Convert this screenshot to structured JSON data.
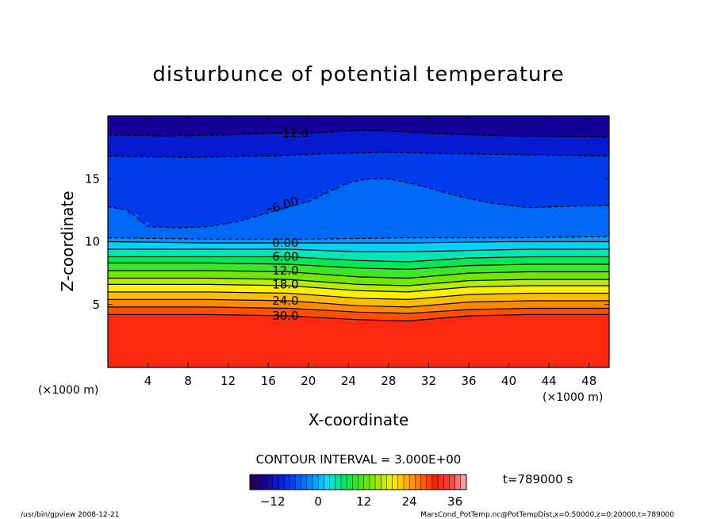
{
  "chart_data": {
    "type": "heatmap",
    "title": "disturbunce of potential temperature",
    "xlabel": "X-coordinate",
    "ylabel": "Z-coordinate",
    "x_unit_left": "(×1000 m)",
    "x_unit_right": "(×1000 m)",
    "xlim": [
      0,
      50
    ],
    "ylim": [
      0,
      20
    ],
    "x_ticks": [
      4,
      8,
      12,
      16,
      20,
      24,
      28,
      32,
      36,
      40,
      44,
      48
    ],
    "x_tick_labels": [
      "4",
      "8",
      "12",
      "16",
      "20",
      "24",
      "28",
      "32",
      "36",
      "40",
      "44",
      "48"
    ],
    "y_ticks": [
      5,
      10,
      15
    ],
    "y_tick_labels": [
      "5",
      "10",
      "15"
    ],
    "colormap_range": [
      -18,
      39
    ],
    "contour_interval_label": "CONTOUR INTERVAL = 3.000E+00",
    "time_label": "t=789000 s",
    "colorbar": {
      "ticks": [
        -12,
        0,
        12,
        24,
        36
      ],
      "tick_labels": [
        "−12",
        "0",
        "12",
        "24",
        "36"
      ]
    },
    "contour_labels": [
      {
        "text": "12.0",
        "x": 18.5,
        "z": 18.6,
        "negative": true
      },
      {
        "text": "6.00",
        "x": 17.5,
        "z": 12.9,
        "negative": true,
        "rotate": -18
      },
      {
        "text": "0.00",
        "x": 17.5,
        "z": 9.9,
        "negative": false
      },
      {
        "text": "6.00",
        "x": 17.5,
        "z": 8.8,
        "negative": false
      },
      {
        "text": "12.0",
        "x": 17.5,
        "z": 7.7,
        "negative": false
      },
      {
        "text": "18.0",
        "x": 17.5,
        "z": 6.6,
        "negative": false
      },
      {
        "text": "24.0",
        "x": 17.5,
        "z": 5.3,
        "negative": false
      },
      {
        "text": "30.0",
        "x": 17.5,
        "z": 4.1,
        "negative": false
      }
    ],
    "contours": [
      {
        "value": -12,
        "dash": true,
        "points": [
          [
            0,
            18.5
          ],
          [
            6,
            18.4
          ],
          [
            12,
            18.5
          ],
          [
            16,
            18.6
          ],
          [
            20,
            18.6
          ],
          [
            24,
            18.8
          ],
          [
            28,
            18.8
          ],
          [
            32,
            18.6
          ],
          [
            40,
            18.4
          ],
          [
            50,
            18.3
          ]
        ]
      },
      {
        "value": -9,
        "dash": true,
        "points": [
          [
            0,
            16.8
          ],
          [
            8,
            16.7
          ],
          [
            16,
            16.8
          ],
          [
            22,
            17.0
          ],
          [
            28,
            17.1
          ],
          [
            34,
            17.0
          ],
          [
            42,
            16.9
          ],
          [
            50,
            16.8
          ]
        ]
      },
      {
        "value": -6,
        "dash": true,
        "points": [
          [
            0,
            12.8
          ],
          [
            2,
            12.5
          ],
          [
            4,
            11.2
          ],
          [
            7,
            11.1
          ],
          [
            10,
            11.2
          ],
          [
            13,
            11.6
          ],
          [
            16,
            12.3
          ],
          [
            20,
            13.2
          ],
          [
            24,
            14.7
          ],
          [
            26,
            15.0
          ],
          [
            28,
            15.0
          ],
          [
            31,
            14.5
          ],
          [
            35,
            13.6
          ],
          [
            38,
            13.1
          ],
          [
            42,
            12.7
          ],
          [
            46,
            12.8
          ],
          [
            50,
            12.9
          ]
        ]
      },
      {
        "value": -3,
        "dash": true,
        "points": [
          [
            0,
            10.3
          ],
          [
            10,
            10.2
          ],
          [
            20,
            10.2
          ],
          [
            30,
            10.3
          ],
          [
            40,
            10.3
          ],
          [
            50,
            10.4
          ]
        ]
      },
      {
        "value": 0,
        "dash": false,
        "points": [
          [
            0,
            10.0
          ],
          [
            10,
            9.9
          ],
          [
            20,
            9.9
          ],
          [
            30,
            9.9
          ],
          [
            40,
            10.0
          ],
          [
            50,
            10.0
          ]
        ]
      },
      {
        "value": 3,
        "dash": false,
        "points": [
          [
            0,
            9.4
          ],
          [
            10,
            9.4
          ],
          [
            18,
            9.4
          ],
          [
            25,
            9.2
          ],
          [
            30,
            9.2
          ],
          [
            36,
            9.3
          ],
          [
            42,
            9.4
          ],
          [
            50,
            9.4
          ]
        ]
      },
      {
        "value": 6,
        "dash": false,
        "points": [
          [
            0,
            8.8
          ],
          [
            10,
            8.8
          ],
          [
            18,
            8.8
          ],
          [
            25,
            8.5
          ],
          [
            30,
            8.4
          ],
          [
            36,
            8.7
          ],
          [
            42,
            8.8
          ],
          [
            50,
            8.8
          ]
        ]
      },
      {
        "value": 9,
        "dash": false,
        "points": [
          [
            0,
            8.3
          ],
          [
            10,
            8.3
          ],
          [
            18,
            8.2
          ],
          [
            25,
            7.9
          ],
          [
            30,
            7.8
          ],
          [
            36,
            8.1
          ],
          [
            42,
            8.2
          ],
          [
            50,
            8.2
          ]
        ]
      },
      {
        "value": 12,
        "dash": false,
        "points": [
          [
            0,
            7.7
          ],
          [
            10,
            7.7
          ],
          [
            18,
            7.6
          ],
          [
            25,
            7.2
          ],
          [
            30,
            7.1
          ],
          [
            36,
            7.5
          ],
          [
            42,
            7.6
          ],
          [
            50,
            7.6
          ]
        ]
      },
      {
        "value": 15,
        "dash": false,
        "points": [
          [
            0,
            7.1
          ],
          [
            10,
            7.1
          ],
          [
            18,
            7.0
          ],
          [
            25,
            6.6
          ],
          [
            30,
            6.5
          ],
          [
            36,
            6.9
          ],
          [
            42,
            7.0
          ],
          [
            50,
            7.0
          ]
        ]
      },
      {
        "value": 18,
        "dash": false,
        "points": [
          [
            0,
            6.6
          ],
          [
            10,
            6.6
          ],
          [
            18,
            6.5
          ],
          [
            25,
            6.1
          ],
          [
            30,
            6.0
          ],
          [
            36,
            6.4
          ],
          [
            42,
            6.5
          ],
          [
            50,
            6.5
          ]
        ]
      },
      {
        "value": 21,
        "dash": false,
        "points": [
          [
            0,
            6.0
          ],
          [
            10,
            6.0
          ],
          [
            18,
            5.9
          ],
          [
            25,
            5.5
          ],
          [
            30,
            5.4
          ],
          [
            36,
            5.8
          ],
          [
            42,
            5.9
          ],
          [
            50,
            5.9
          ]
        ]
      },
      {
        "value": 24,
        "dash": false,
        "points": [
          [
            0,
            5.4
          ],
          [
            10,
            5.4
          ],
          [
            18,
            5.3
          ],
          [
            25,
            4.9
          ],
          [
            30,
            4.8
          ],
          [
            36,
            5.2
          ],
          [
            42,
            5.3
          ],
          [
            50,
            5.3
          ]
        ]
      },
      {
        "value": 27,
        "dash": false,
        "points": [
          [
            0,
            4.8
          ],
          [
            10,
            4.8
          ],
          [
            18,
            4.7
          ],
          [
            25,
            4.4
          ],
          [
            30,
            4.3
          ],
          [
            36,
            4.6
          ],
          [
            42,
            4.7
          ],
          [
            50,
            4.7
          ]
        ]
      },
      {
        "value": 30,
        "dash": false,
        "points": [
          [
            0,
            4.2
          ],
          [
            10,
            4.2
          ],
          [
            18,
            4.1
          ],
          [
            25,
            3.8
          ],
          [
            30,
            3.7
          ],
          [
            36,
            4.1
          ],
          [
            42,
            4.2
          ],
          [
            50,
            4.2
          ]
        ]
      }
    ]
  },
  "footer": {
    "left": "/usr/bin/gpview   2008-12-21",
    "right": "MarsCond_PotTemp.nc@PotTempDist,x=0:50000,z=0:20000,t=789000"
  }
}
